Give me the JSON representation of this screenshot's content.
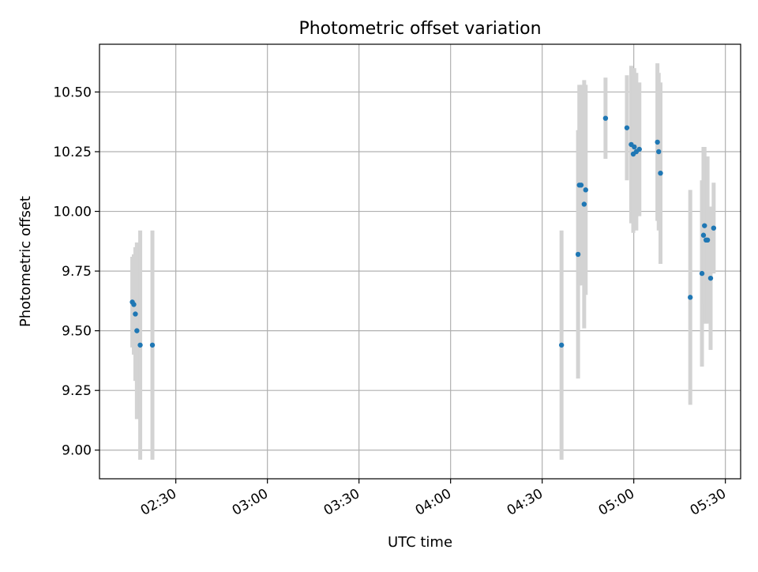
{
  "chart_data": {
    "type": "scatter",
    "title": "Photometric offset variation",
    "xlabel": "UTC time",
    "ylabel": "Photometric offset",
    "x_unit": "UTC time (hh:mm)",
    "xlim": [
      "02:05",
      "05:35"
    ],
    "ylim": [
      8.88,
      10.7
    ],
    "x_ticks": [
      "02:30",
      "03:00",
      "03:30",
      "04:00",
      "04:30",
      "05:00",
      "05:30"
    ],
    "y_ticks": [
      "9.00",
      "9.25",
      "9.50",
      "9.75",
      "10.00",
      "10.25",
      "10.50"
    ],
    "grid": true,
    "legend": "none",
    "points": [
      {
        "x": "02:15:45",
        "y": 9.62,
        "err": 0.19
      },
      {
        "x": "02:16:15",
        "y": 9.61,
        "err": 0.21
      },
      {
        "x": "02:16:45",
        "y": 9.57,
        "err": 0.28
      },
      {
        "x": "02:17:15",
        "y": 9.5,
        "err": 0.37
      },
      {
        "x": "02:18:20",
        "y": 9.44,
        "err": 0.48
      },
      {
        "x": "02:22:20",
        "y": 9.44,
        "err": 0.48
      },
      {
        "x": "04:36:20",
        "y": 9.44,
        "err": 0.48
      },
      {
        "x": "04:41:45",
        "y": 9.82,
        "err": 0.52
      },
      {
        "x": "04:42:10",
        "y": 10.11,
        "err": 0.42
      },
      {
        "x": "04:42:45",
        "y": 10.11,
        "err": 0.42
      },
      {
        "x": "04:43:45",
        "y": 10.03,
        "err": 0.52
      },
      {
        "x": "04:44:15",
        "y": 10.09,
        "err": 0.44
      },
      {
        "x": "04:50:45",
        "y": 10.39,
        "err": 0.17
      },
      {
        "x": "04:57:45",
        "y": 10.35,
        "err": 0.22
      },
      {
        "x": "04:59:10",
        "y": 10.28,
        "err": 0.33
      },
      {
        "x": "04:59:50",
        "y": 10.24,
        "err": 0.33
      },
      {
        "x": "05:00:10",
        "y": 10.27,
        "err": 0.33
      },
      {
        "x": "05:00:50",
        "y": 10.25,
        "err": 0.33
      },
      {
        "x": "05:01:50",
        "y": 10.26,
        "err": 0.28
      },
      {
        "x": "05:07:45",
        "y": 10.29,
        "err": 0.33
      },
      {
        "x": "05:08:10",
        "y": 10.25,
        "err": 0.33
      },
      {
        "x": "05:08:45",
        "y": 10.16,
        "err": 0.38
      },
      {
        "x": "05:18:30",
        "y": 9.64,
        "err": 0.45
      },
      {
        "x": "05:22:20",
        "y": 9.74,
        "err": 0.39
      },
      {
        "x": "05:22:50",
        "y": 9.9,
        "err": 0.37
      },
      {
        "x": "05:23:10",
        "y": 9.94,
        "err": 0.33
      },
      {
        "x": "05:23:40",
        "y": 9.88,
        "err": 0.35
      },
      {
        "x": "05:24:10",
        "y": 9.88,
        "err": 0.35
      },
      {
        "x": "05:25:10",
        "y": 9.72,
        "err": 0.3
      },
      {
        "x": "05:26:10",
        "y": 9.93,
        "err": 0.19
      }
    ]
  },
  "colors": {
    "marker": "#1f77b4",
    "errorbar": "#d3d3d3",
    "grid": "#b0b0b0",
    "axis": "#000000"
  }
}
